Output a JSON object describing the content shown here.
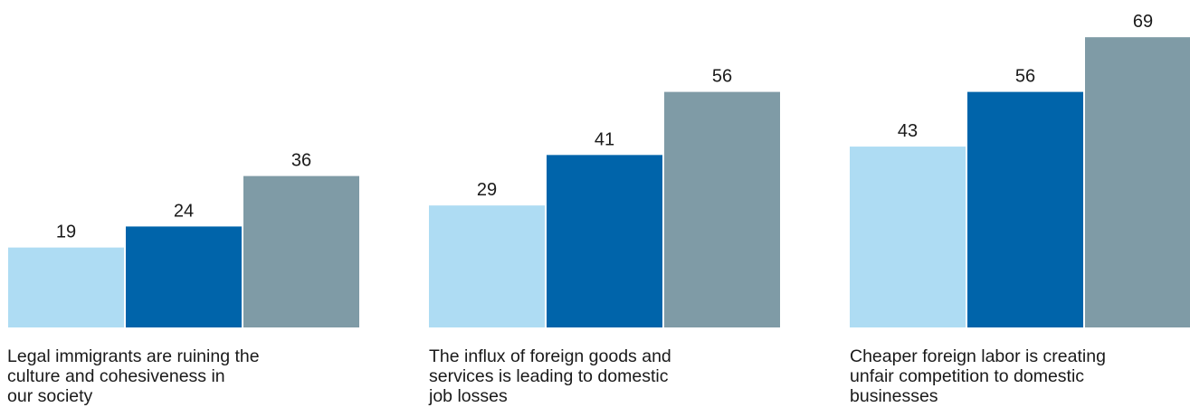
{
  "colors": {
    "series_1": "#aedcf3",
    "series_2": "#0064aa",
    "series_3": "#7f9ba6"
  },
  "chart_data": {
    "type": "bar",
    "title": "",
    "xlabel": "",
    "ylabel": "",
    "ylim": [
      0,
      69
    ],
    "grid": false,
    "legend": "none",
    "categories": [
      "Legal immigrants are ruining the\nculture and cohesiveness in\nour society",
      "The influx of foreign goods and\nservices is leading to domestic\njob losses",
      "Cheaper foreign labor is creating\nunfair competition to domestic\n businesses"
    ],
    "series": [
      {
        "values": [
          19,
          29,
          43
        ]
      },
      {
        "values": [
          24,
          41,
          56
        ]
      },
      {
        "values": [
          36,
          56,
          69
        ]
      }
    ]
  }
}
